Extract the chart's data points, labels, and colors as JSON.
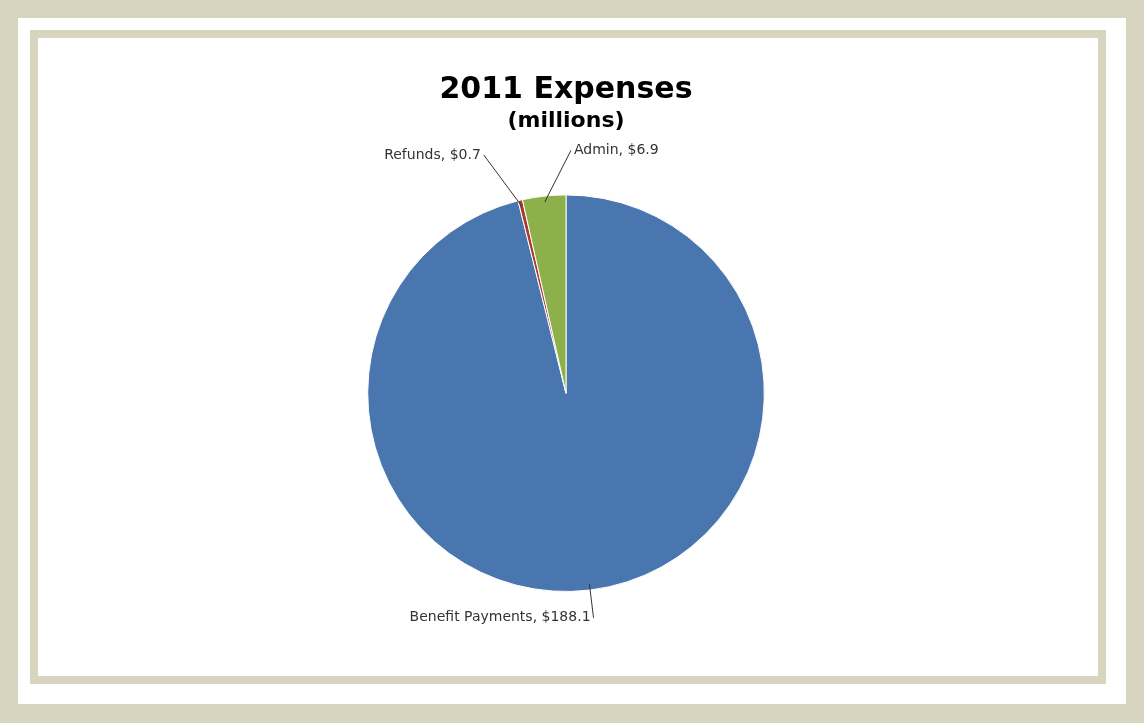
{
  "chart_data": {
    "type": "pie",
    "title": "2011 Expenses",
    "subtitle": "(millions)",
    "categories": [
      "Benefit Payments",
      "Refunds",
      "Admin"
    ],
    "values": [
      188.1,
      0.7,
      6.9
    ],
    "colors": [
      "#4a76b0",
      "#a83a30",
      "#8db04a"
    ],
    "value_labels": [
      "$188.1",
      "$0.7",
      "$6.9"
    ],
    "legend": false
  }
}
